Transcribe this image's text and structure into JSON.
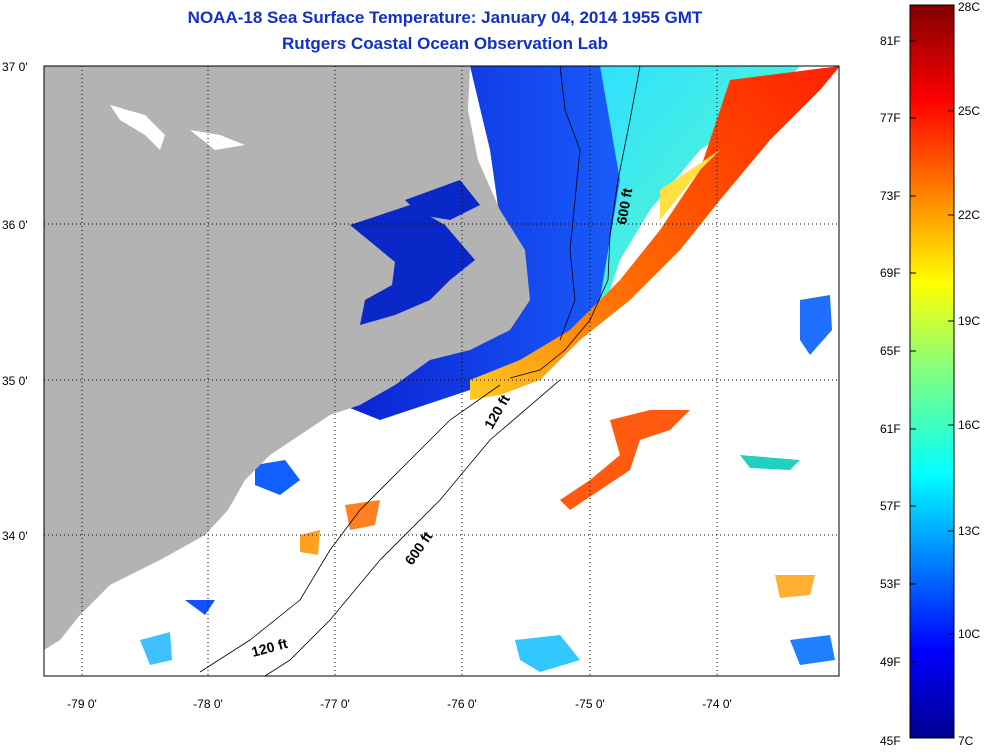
{
  "title": "NOAA-18 Sea Surface Temperature:  January 04, 2014 1955 GMT",
  "subtitle": "Rutgers Coastal Ocean Observation Lab",
  "map": {
    "lat_labels": [
      "37 0'",
      "36 0'",
      "35 0'",
      "34 0'"
    ],
    "lon_labels": [
      "-79 0'",
      "-78 0'",
      "-77 0'",
      "-76 0'",
      "-75 0'",
      "-74 0'"
    ],
    "isobath_labels": [
      "600 ft",
      "120 ft",
      "600 ft",
      "120 ft"
    ],
    "colors": {
      "land": "#b3b3b3",
      "cloud": "#ffffff",
      "cold": "#0000b0",
      "warm": "#ff4000"
    }
  },
  "colorbar": {
    "fahrenheit_labels": [
      "81F",
      "77F",
      "73F",
      "69F",
      "65F",
      "61F",
      "57F",
      "53F",
      "49F",
      "45F"
    ],
    "celsius_labels": [
      "28C",
      "25C",
      "22C",
      "19C",
      "16C",
      "13C",
      "10C",
      "7C"
    ],
    "range_f": [
      45,
      82.4
    ],
    "range_c": [
      7,
      28
    ]
  }
}
